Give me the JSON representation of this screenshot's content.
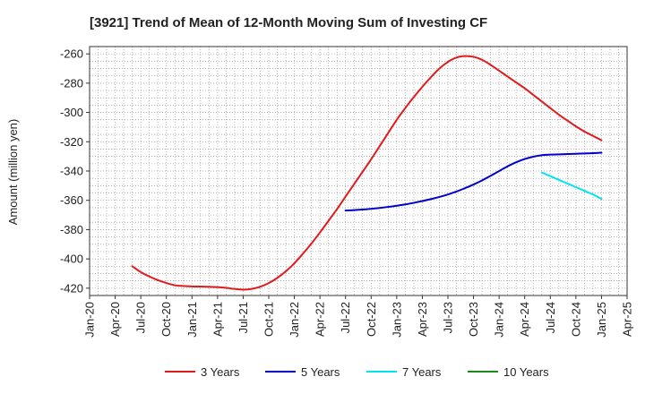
{
  "chart_data": {
    "type": "line",
    "title": "[3921]  Trend of Mean of 12-Month Moving Sum of Investing CF",
    "xlabel": "",
    "ylabel": "Amount (million yen)",
    "ylim": [
      -425,
      -255
    ],
    "yticks": [
      -260,
      -280,
      -300,
      -320,
      -340,
      -360,
      -380,
      -400,
      -420
    ],
    "xlim": [
      "2020-01",
      "2025-04"
    ],
    "xticks": [
      "Jan-20",
      "Apr-20",
      "Jul-20",
      "Oct-20",
      "Jan-21",
      "Apr-21",
      "Jul-21",
      "Oct-21",
      "Jan-22",
      "Apr-22",
      "Jul-22",
      "Oct-22",
      "Jan-23",
      "Apr-23",
      "Jul-23",
      "Oct-23",
      "Jan-24",
      "Apr-24",
      "Jul-24",
      "Oct-24",
      "Jan-25",
      "Apr-25"
    ],
    "grid": true,
    "legend_position": "bottom",
    "series": [
      {
        "name": "3 Years",
        "color": "#e31a1c",
        "points": [
          [
            "2020-06",
            -405
          ],
          [
            "2020-07",
            -409
          ],
          [
            "2020-08",
            -412
          ],
          [
            "2020-09",
            -414.5
          ],
          [
            "2020-10",
            -416.5
          ],
          [
            "2020-11",
            -418
          ],
          [
            "2020-12",
            -418.5
          ],
          [
            "2021-01",
            -418.8
          ],
          [
            "2021-02",
            -418.9
          ],
          [
            "2021-03",
            -419
          ],
          [
            "2021-04",
            -419.3
          ],
          [
            "2021-05",
            -419.8
          ],
          [
            "2021-06",
            -420.5
          ],
          [
            "2021-07",
            -421
          ],
          [
            "2021-08",
            -420.5
          ],
          [
            "2021-09",
            -419
          ],
          [
            "2021-10",
            -416.5
          ],
          [
            "2021-11",
            -413
          ],
          [
            "2021-12",
            -408.5
          ],
          [
            "2022-01",
            -403
          ],
          [
            "2022-02",
            -396.5
          ],
          [
            "2022-03",
            -389.5
          ],
          [
            "2022-04",
            -382
          ],
          [
            "2022-05",
            -374
          ],
          [
            "2022-06",
            -366
          ],
          [
            "2022-07",
            -357.5
          ],
          [
            "2022-08",
            -349
          ],
          [
            "2022-09",
            -340.5
          ],
          [
            "2022-10",
            -332
          ],
          [
            "2022-11",
            -323
          ],
          [
            "2022-12",
            -314
          ],
          [
            "2023-01",
            -305
          ],
          [
            "2023-02",
            -297
          ],
          [
            "2023-03",
            -289.5
          ],
          [
            "2023-04",
            -282.5
          ],
          [
            "2023-05",
            -276
          ],
          [
            "2023-06",
            -270
          ],
          [
            "2023-07",
            -265.5
          ],
          [
            "2023-08",
            -262.5
          ],
          [
            "2023-09",
            -261.5
          ],
          [
            "2023-10",
            -262
          ],
          [
            "2023-11",
            -264
          ],
          [
            "2023-12",
            -267.5
          ],
          [
            "2024-01",
            -271.5
          ],
          [
            "2024-02",
            -275.5
          ],
          [
            "2024-03",
            -279.5
          ],
          [
            "2024-04",
            -283.5
          ],
          [
            "2024-05",
            -288
          ],
          [
            "2024-06",
            -292.5
          ],
          [
            "2024-07",
            -297
          ],
          [
            "2024-08",
            -301.5
          ],
          [
            "2024-09",
            -305.5
          ],
          [
            "2024-10",
            -309.5
          ],
          [
            "2024-11",
            -313
          ],
          [
            "2024-12",
            -316
          ],
          [
            "2025-01",
            -319
          ]
        ]
      },
      {
        "name": "5 Years",
        "color": "#0000cc",
        "points": [
          [
            "2022-07",
            -367
          ],
          [
            "2022-08",
            -366.7
          ],
          [
            "2022-09",
            -366.3
          ],
          [
            "2022-10",
            -365.8
          ],
          [
            "2022-11",
            -365.2
          ],
          [
            "2022-12",
            -364.5
          ],
          [
            "2023-01",
            -363.7
          ],
          [
            "2023-02",
            -362.8
          ],
          [
            "2023-03",
            -361.7
          ],
          [
            "2023-04",
            -360.5
          ],
          [
            "2023-05",
            -359.2
          ],
          [
            "2023-06",
            -357.7
          ],
          [
            "2023-07",
            -356
          ],
          [
            "2023-08",
            -354
          ],
          [
            "2023-09",
            -351.7
          ],
          [
            "2023-10",
            -349.2
          ],
          [
            "2023-11",
            -346.4
          ],
          [
            "2023-12",
            -343.3
          ],
          [
            "2024-01",
            -340
          ],
          [
            "2024-02",
            -336.8
          ],
          [
            "2024-03",
            -334
          ],
          [
            "2024-04",
            -331.8
          ],
          [
            "2024-05",
            -330.2
          ],
          [
            "2024-06",
            -329.2
          ],
          [
            "2024-07",
            -328.8
          ],
          [
            "2024-08",
            -328.6
          ],
          [
            "2024-09",
            -328.4
          ],
          [
            "2024-10",
            -328.2
          ],
          [
            "2024-11",
            -328
          ],
          [
            "2024-12",
            -327.8
          ],
          [
            "2025-01",
            -327.5
          ]
        ]
      },
      {
        "name": "7 Years",
        "color": "#00e5ee",
        "points": [
          [
            "2024-06",
            -341
          ],
          [
            "2024-07",
            -343.5
          ],
          [
            "2024-08",
            -346
          ],
          [
            "2024-09",
            -348.5
          ],
          [
            "2024-10",
            -351
          ],
          [
            "2024-11",
            -353.5
          ],
          [
            "2024-12",
            -356
          ],
          [
            "2025-01",
            -359
          ]
        ]
      },
      {
        "name": "10 Years",
        "color": "#1a8a1a",
        "points": []
      }
    ]
  }
}
